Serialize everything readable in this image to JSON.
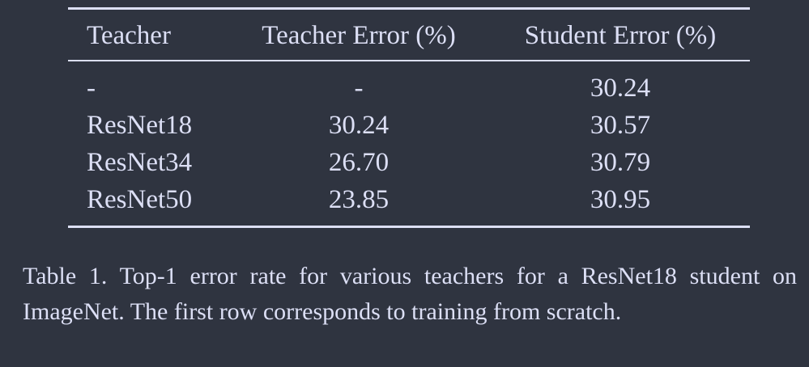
{
  "table": {
    "headers": [
      "Teacher",
      "Teacher Error (%)",
      "Student Error (%)"
    ],
    "rows": [
      [
        "-",
        "-",
        "30.24"
      ],
      [
        "ResNet18",
        "30.24",
        "30.57"
      ],
      [
        "ResNet34",
        "26.70",
        "30.79"
      ],
      [
        "ResNet50",
        "23.85",
        "30.95"
      ]
    ]
  },
  "caption": {
    "text": "Table 1. Top-1 error rate for various teachers for a ResNet18 student on ImageNet.  The first row corresponds to training from scratch."
  }
}
